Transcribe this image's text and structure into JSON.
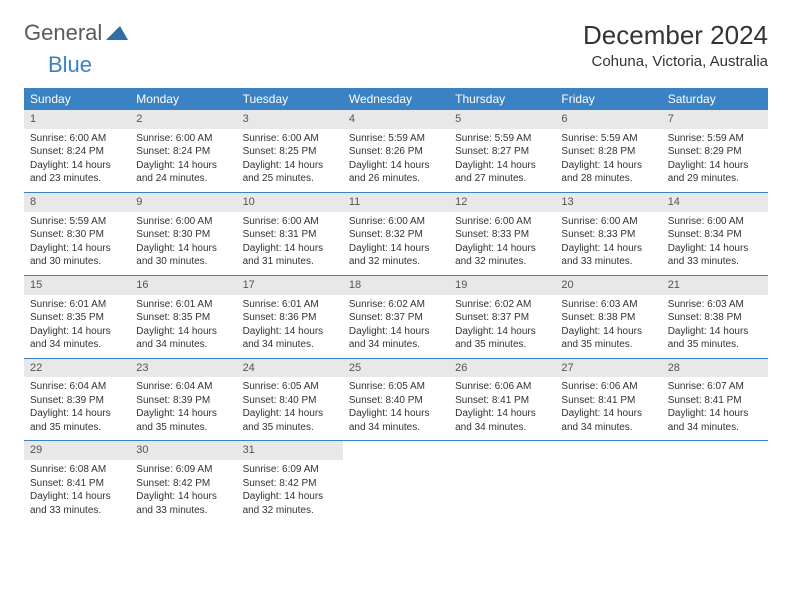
{
  "logo": {
    "general": "General",
    "blue": "Blue"
  },
  "title": "December 2024",
  "location": "Cohuna, Victoria, Australia",
  "colors": {
    "header_bg": "#3b82c4",
    "header_fg": "#ffffff",
    "daynum_bg": "#e8e8e8",
    "row_border": "#3b82c4",
    "text": "#333333"
  },
  "weekdays": [
    "Sunday",
    "Monday",
    "Tuesday",
    "Wednesday",
    "Thursday",
    "Friday",
    "Saturday"
  ],
  "first_weekday_index": 0,
  "num_days": 31,
  "days": [
    {
      "n": 1,
      "sunrise": "6:00 AM",
      "sunset": "8:24 PM",
      "daylight": "14 hours and 23 minutes."
    },
    {
      "n": 2,
      "sunrise": "6:00 AM",
      "sunset": "8:24 PM",
      "daylight": "14 hours and 24 minutes."
    },
    {
      "n": 3,
      "sunrise": "6:00 AM",
      "sunset": "8:25 PM",
      "daylight": "14 hours and 25 minutes."
    },
    {
      "n": 4,
      "sunrise": "5:59 AM",
      "sunset": "8:26 PM",
      "daylight": "14 hours and 26 minutes."
    },
    {
      "n": 5,
      "sunrise": "5:59 AM",
      "sunset": "8:27 PM",
      "daylight": "14 hours and 27 minutes."
    },
    {
      "n": 6,
      "sunrise": "5:59 AM",
      "sunset": "8:28 PM",
      "daylight": "14 hours and 28 minutes."
    },
    {
      "n": 7,
      "sunrise": "5:59 AM",
      "sunset": "8:29 PM",
      "daylight": "14 hours and 29 minutes."
    },
    {
      "n": 8,
      "sunrise": "5:59 AM",
      "sunset": "8:30 PM",
      "daylight": "14 hours and 30 minutes."
    },
    {
      "n": 9,
      "sunrise": "6:00 AM",
      "sunset": "8:30 PM",
      "daylight": "14 hours and 30 minutes."
    },
    {
      "n": 10,
      "sunrise": "6:00 AM",
      "sunset": "8:31 PM",
      "daylight": "14 hours and 31 minutes."
    },
    {
      "n": 11,
      "sunrise": "6:00 AM",
      "sunset": "8:32 PM",
      "daylight": "14 hours and 32 minutes."
    },
    {
      "n": 12,
      "sunrise": "6:00 AM",
      "sunset": "8:33 PM",
      "daylight": "14 hours and 32 minutes."
    },
    {
      "n": 13,
      "sunrise": "6:00 AM",
      "sunset": "8:33 PM",
      "daylight": "14 hours and 33 minutes."
    },
    {
      "n": 14,
      "sunrise": "6:00 AM",
      "sunset": "8:34 PM",
      "daylight": "14 hours and 33 minutes."
    },
    {
      "n": 15,
      "sunrise": "6:01 AM",
      "sunset": "8:35 PM",
      "daylight": "14 hours and 34 minutes."
    },
    {
      "n": 16,
      "sunrise": "6:01 AM",
      "sunset": "8:35 PM",
      "daylight": "14 hours and 34 minutes."
    },
    {
      "n": 17,
      "sunrise": "6:01 AM",
      "sunset": "8:36 PM",
      "daylight": "14 hours and 34 minutes."
    },
    {
      "n": 18,
      "sunrise": "6:02 AM",
      "sunset": "8:37 PM",
      "daylight": "14 hours and 34 minutes."
    },
    {
      "n": 19,
      "sunrise": "6:02 AM",
      "sunset": "8:37 PM",
      "daylight": "14 hours and 35 minutes."
    },
    {
      "n": 20,
      "sunrise": "6:03 AM",
      "sunset": "8:38 PM",
      "daylight": "14 hours and 35 minutes."
    },
    {
      "n": 21,
      "sunrise": "6:03 AM",
      "sunset": "8:38 PM",
      "daylight": "14 hours and 35 minutes."
    },
    {
      "n": 22,
      "sunrise": "6:04 AM",
      "sunset": "8:39 PM",
      "daylight": "14 hours and 35 minutes."
    },
    {
      "n": 23,
      "sunrise": "6:04 AM",
      "sunset": "8:39 PM",
      "daylight": "14 hours and 35 minutes."
    },
    {
      "n": 24,
      "sunrise": "6:05 AM",
      "sunset": "8:40 PM",
      "daylight": "14 hours and 35 minutes."
    },
    {
      "n": 25,
      "sunrise": "6:05 AM",
      "sunset": "8:40 PM",
      "daylight": "14 hours and 34 minutes."
    },
    {
      "n": 26,
      "sunrise": "6:06 AM",
      "sunset": "8:41 PM",
      "daylight": "14 hours and 34 minutes."
    },
    {
      "n": 27,
      "sunrise": "6:06 AM",
      "sunset": "8:41 PM",
      "daylight": "14 hours and 34 minutes."
    },
    {
      "n": 28,
      "sunrise": "6:07 AM",
      "sunset": "8:41 PM",
      "daylight": "14 hours and 34 minutes."
    },
    {
      "n": 29,
      "sunrise": "6:08 AM",
      "sunset": "8:41 PM",
      "daylight": "14 hours and 33 minutes."
    },
    {
      "n": 30,
      "sunrise": "6:09 AM",
      "sunset": "8:42 PM",
      "daylight": "14 hours and 33 minutes."
    },
    {
      "n": 31,
      "sunrise": "6:09 AM",
      "sunset": "8:42 PM",
      "daylight": "14 hours and 32 minutes."
    }
  ],
  "labels": {
    "sunrise_prefix": "Sunrise: ",
    "sunset_prefix": "Sunset: ",
    "daylight_prefix": "Daylight: "
  }
}
